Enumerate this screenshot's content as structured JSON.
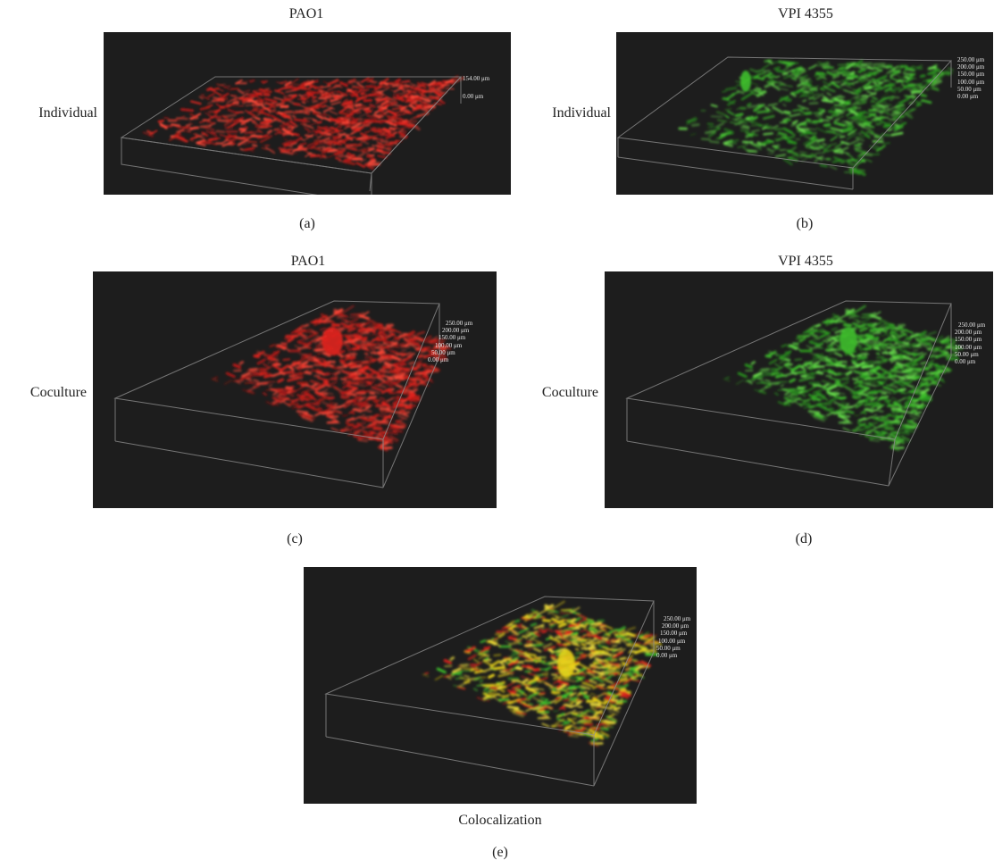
{
  "panels": {
    "a": {
      "top_label": "PAO1",
      "side_label": "Individual",
      "caption": "(a)",
      "scale": [
        "154.00 μm",
        "0.00 μm"
      ]
    },
    "b": {
      "top_label": "VPI 4355",
      "side_label": "Individual",
      "caption": "(b)",
      "scale": [
        "250.00 μm",
        "200.00 μm",
        "150.00 μm",
        "100.00 μm",
        "50.00 μm",
        "0.00 μm"
      ]
    },
    "c": {
      "top_label": "PAO1",
      "side_label": "Coculture",
      "caption": "(c)",
      "scale": [
        "250.00 μm",
        "200.00 μm",
        "150.00 μm",
        "100.00 μm",
        "50.00 μm",
        "0.00 μm"
      ]
    },
    "d": {
      "top_label": "VPI 4355",
      "side_label": "Coculture",
      "caption": "(d)",
      "scale": [
        "250.00 μm",
        "200.00 μm",
        "150.00 μm",
        "100.00 μm",
        "50.00 μm",
        "0.00 μm"
      ]
    },
    "e": {
      "bottom_label": "Colocalization",
      "caption": "(e)",
      "scale": [
        "250.00 μm",
        "200.00 μm",
        "150.00 μm",
        "100.00 μm",
        "50.00 μm",
        "0.00 μm"
      ]
    }
  },
  "colors": {
    "panel_background": "#1d1d1d",
    "pao1_stain": "#e0241e",
    "vpi_stain": "#3fbf2c",
    "colocalization": "#e8d21a",
    "box_outline": "#8c8c8c"
  }
}
